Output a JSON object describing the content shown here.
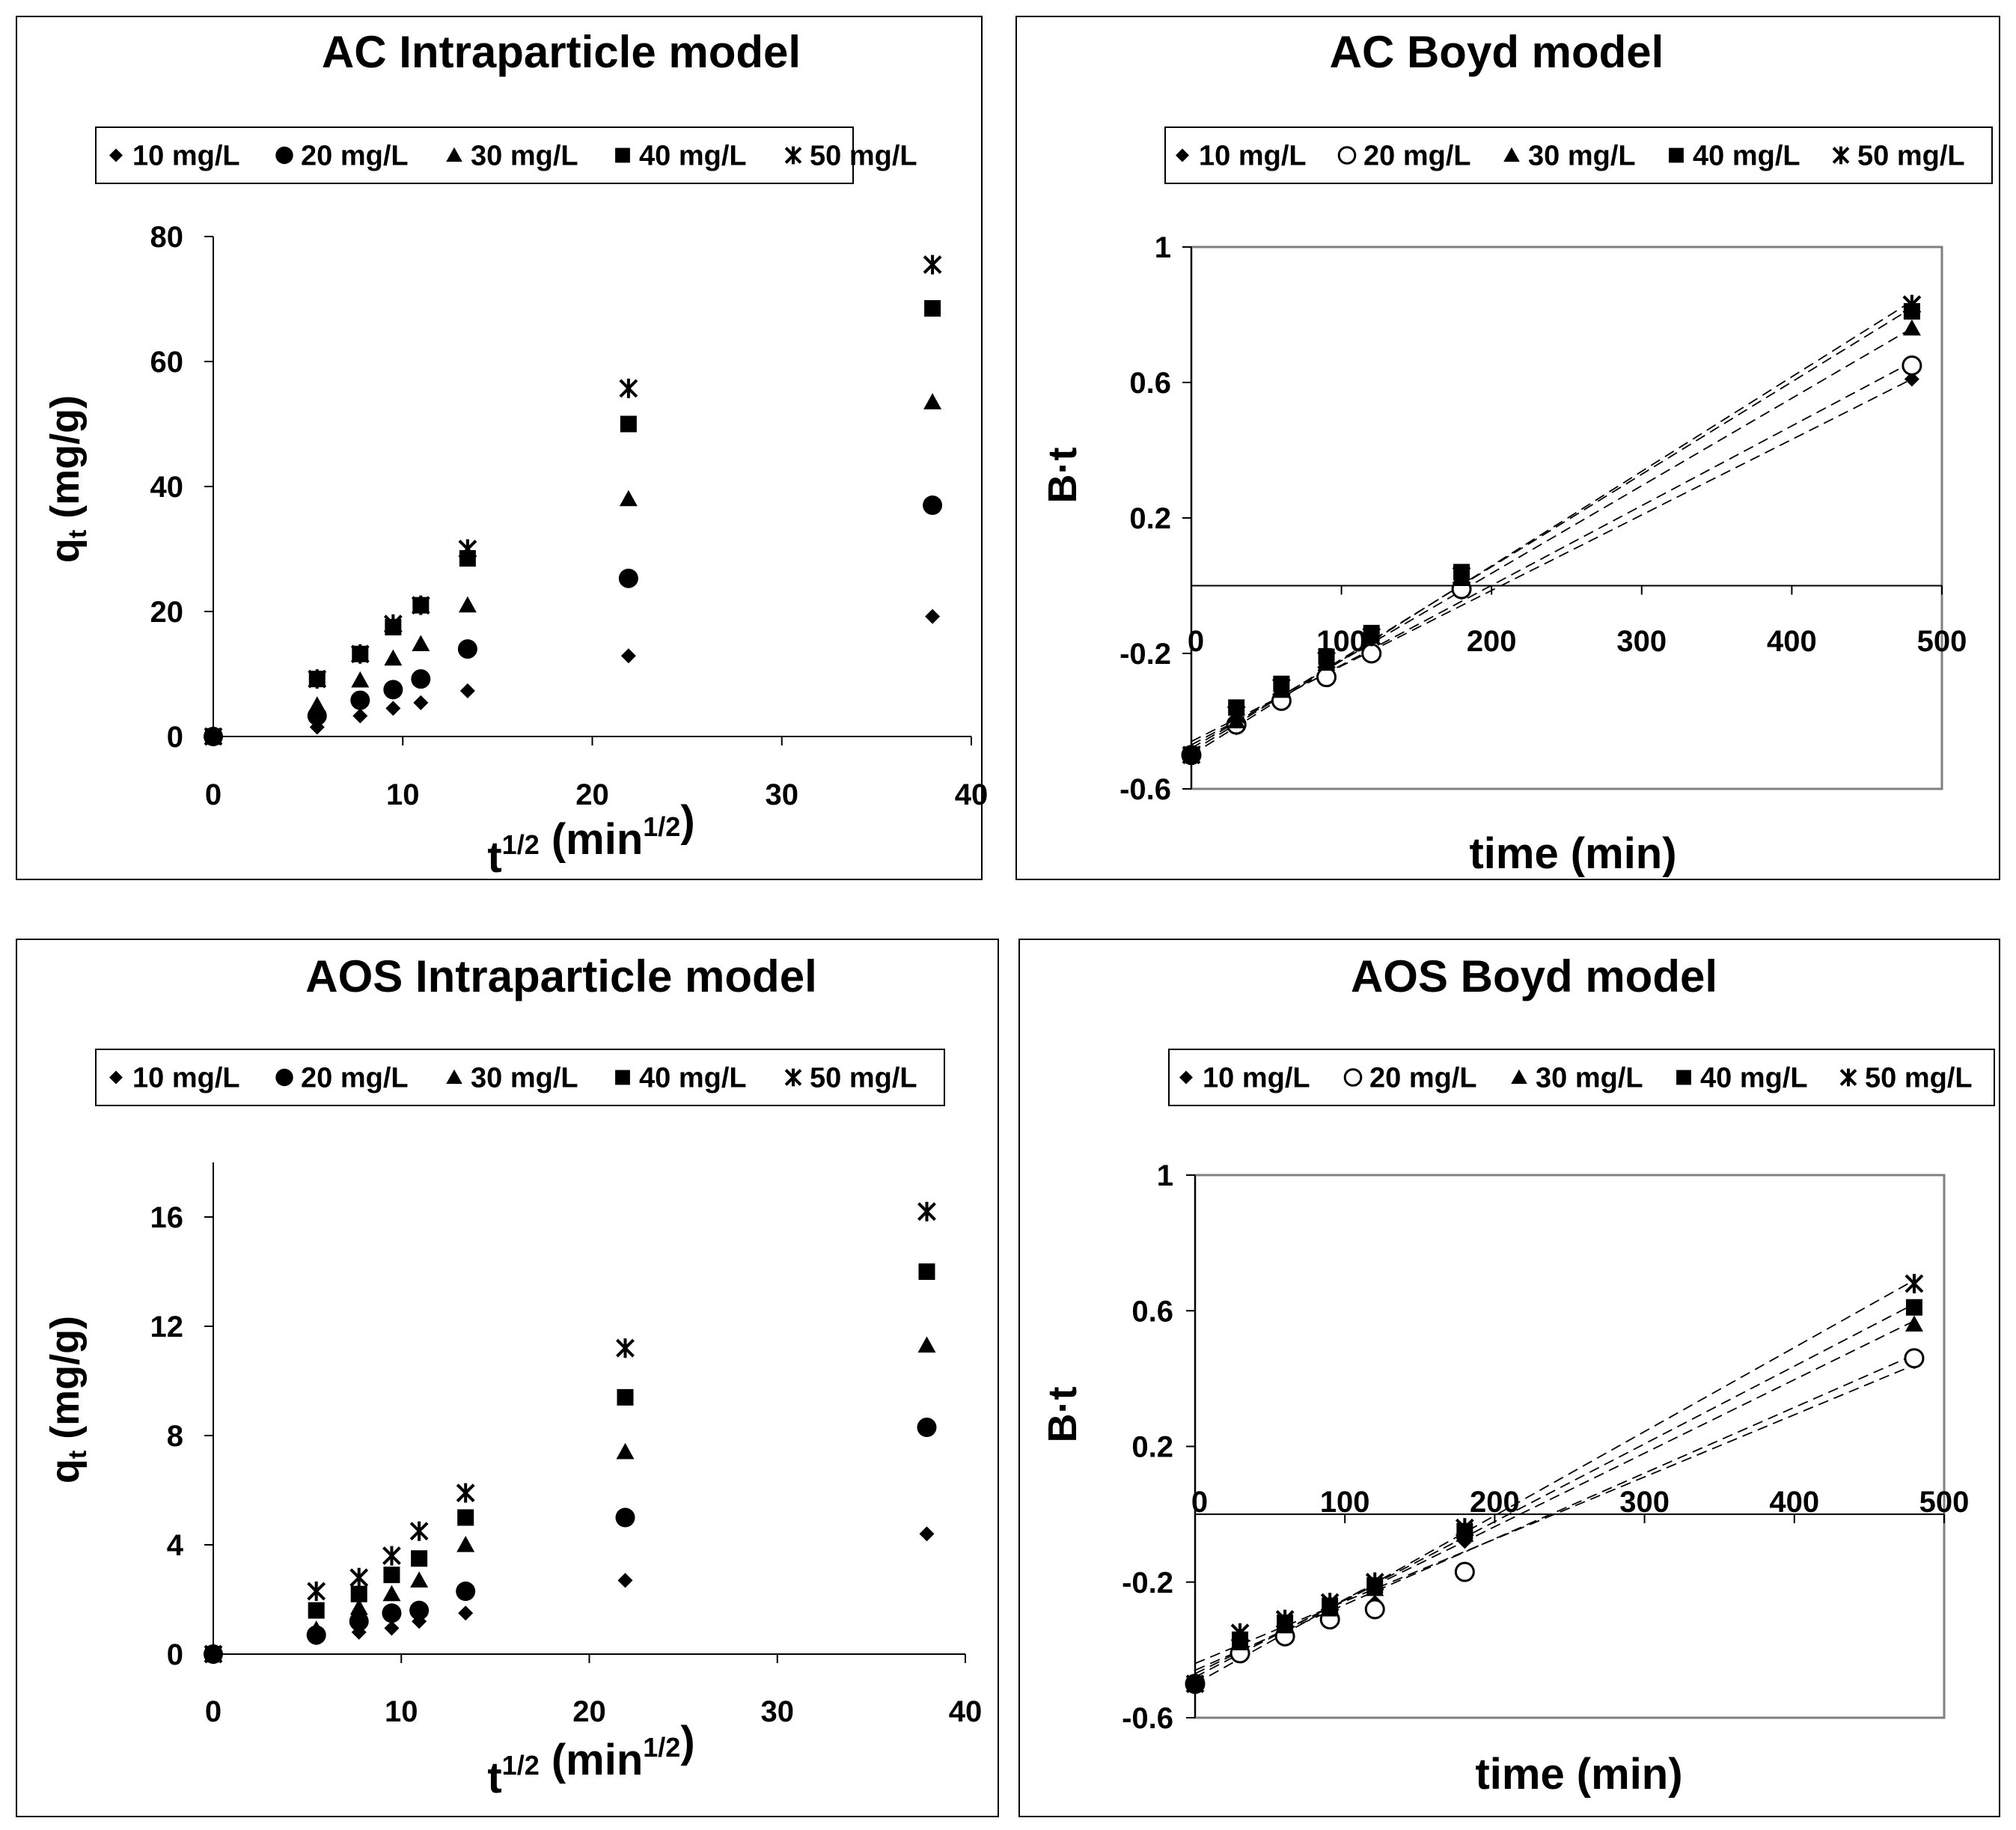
{
  "chart_data": [
    {
      "type": "scatter",
      "title": "AC  Intraparticle model",
      "xlabel": "t",
      "xlabel_sup": "1/2",
      "xlabel_unit": "(min",
      "xlabel_unit_sup": "1/2",
      "xlabel_close": ")",
      "ylabel_main": "q",
      "ylabel_sub": "t",
      "ylabel_unit": " (mg/g)",
      "xlim": [
        0,
        40
      ],
      "ylim": [
        0,
        80
      ],
      "xticks": [
        0,
        10,
        20,
        30,
        40
      ],
      "yticks": [
        0,
        20,
        40,
        60,
        80
      ],
      "xtick_labels": [
        "0",
        "10",
        "20",
        "30",
        "40"
      ],
      "ytick_labels": [
        "0",
        "20",
        "40",
        "60",
        "80"
      ],
      "x": [
        0,
        5.48,
        7.75,
        9.49,
        10.95,
        13.42,
        21.91,
        37.95
      ],
      "series": [
        {
          "name": "10 mg/L",
          "marker": "diamond",
          "values": [
            0,
            1.5,
            3.3,
            4.5,
            5.4,
            7.3,
            12.9,
            19.2
          ]
        },
        {
          "name": "20 mg/L",
          "marker": "circle",
          "values": [
            0,
            3.3,
            5.8,
            7.5,
            9.2,
            14,
            25.3,
            37
          ]
        },
        {
          "name": "30 mg/L",
          "marker": "triangle",
          "values": [
            0,
            5,
            9,
            12.5,
            14.8,
            21,
            38,
            53.5
          ]
        },
        {
          "name": "40 mg/L",
          "marker": "square",
          "values": [
            0,
            9.2,
            13.2,
            17.5,
            21,
            28.5,
            50,
            68.5
          ]
        },
        {
          "name": "50 mg/L",
          "marker": "star",
          "values": [
            0,
            9.2,
            13.2,
            18,
            21,
            30,
            55.7,
            75.5
          ]
        }
      ]
    },
    {
      "type": "scatter",
      "title": "AC Boyd model",
      "xlabel": "time (min)",
      "ylabel": "B·t",
      "xlim": [
        0,
        500
      ],
      "ylim": [
        -0.6,
        1
      ],
      "xticks": [
        0,
        100,
        200,
        300,
        400,
        500
      ],
      "yticks": [
        -0.6,
        -0.2,
        0.2,
        0.6,
        1
      ],
      "xtick_labels": [
        "0",
        "100",
        "200",
        "300",
        "400",
        "500"
      ],
      "ytick_labels": [
        "-0.6",
        "-0.2",
        "0.2",
        "0.6",
        "1"
      ],
      "x": [
        0,
        30,
        60,
        90,
        120,
        180,
        480
      ],
      "series": [
        {
          "name": "10 mg/L",
          "marker": "diamond",
          "values": [
            -0.5,
            -0.42,
            -0.34,
            -0.27,
            -0.2,
            -0.02,
            0.61
          ],
          "trend": [
            -0.46,
            0.61
          ]
        },
        {
          "name": "20 mg/L",
          "marker": "circle-open",
          "values": [
            -0.5,
            -0.41,
            -0.34,
            -0.27,
            -0.2,
            -0.01,
            0.65
          ],
          "trend": [
            -0.47,
            0.66
          ]
        },
        {
          "name": "30 mg/L",
          "marker": "triangle",
          "values": [
            -0.5,
            -0.4,
            -0.31,
            -0.23,
            -0.15,
            0.02,
            0.76
          ],
          "trend": [
            -0.48,
            0.76
          ]
        },
        {
          "name": "40 mg/L",
          "marker": "square",
          "values": [
            -0.5,
            -0.36,
            -0.29,
            -0.21,
            -0.14,
            0.04,
            0.81
          ],
          "trend": [
            -0.49,
            0.82
          ]
        },
        {
          "name": "50 mg/L",
          "marker": "star",
          "values": [
            -0.5,
            -0.38,
            -0.3,
            -0.22,
            -0.15,
            0.03,
            0.83
          ],
          "trend": [
            -0.5,
            0.84
          ]
        }
      ]
    },
    {
      "type": "scatter",
      "title": "AOS  Intraparticle model",
      "xlabel": "t",
      "xlabel_sup": "1/2",
      "xlabel_unit": "(min",
      "xlabel_unit_sup": "1/2",
      "xlabel_close": ")",
      "ylabel_main": "q",
      "ylabel_sub": "t",
      "ylabel_unit": " (mg/g)",
      "xlim": [
        0,
        40
      ],
      "ylim": [
        0,
        18
      ],
      "xticks": [
        0,
        10,
        20,
        30,
        40
      ],
      "yticks": [
        0,
        4,
        8,
        12,
        16
      ],
      "xtick_labels": [
        "0",
        "10",
        "20",
        "30",
        "40"
      ],
      "ytick_labels": [
        "0",
        "4",
        "8",
        "12",
        "16"
      ],
      "x": [
        0,
        5.48,
        7.75,
        9.49,
        10.95,
        13.42,
        21.91,
        37.95
      ],
      "series": [
        {
          "name": "10 mg/L",
          "marker": "diamond",
          "values": [
            0,
            0.6,
            0.8,
            0.95,
            1.2,
            1.5,
            2.7,
            4.4
          ]
        },
        {
          "name": "20 mg/L",
          "marker": "circle",
          "values": [
            0,
            0.7,
            1.2,
            1.5,
            1.6,
            2.3,
            5,
            8.3
          ]
        },
        {
          "name": "30 mg/L",
          "marker": "triangle",
          "values": [
            0,
            0.9,
            1.7,
            2.2,
            2.7,
            4,
            7.4,
            11.3
          ]
        },
        {
          "name": "40 mg/L",
          "marker": "square",
          "values": [
            0,
            1.6,
            2.2,
            2.9,
            3.5,
            5,
            9.4,
            14
          ]
        },
        {
          "name": "50 mg/L",
          "marker": "star",
          "values": [
            0,
            2.3,
            2.8,
            3.6,
            4.5,
            5.9,
            11.2,
            16.2
          ]
        }
      ]
    },
    {
      "type": "scatter",
      "title": "AOS  Boyd model",
      "xlabel": "time (min)",
      "ylabel": "B·t",
      "xlim": [
        0,
        500
      ],
      "ylim": [
        -0.6,
        1
      ],
      "xticks": [
        0,
        100,
        200,
        300,
        400,
        500
      ],
      "yticks": [
        -0.6,
        -0.2,
        0.2,
        0.6,
        1
      ],
      "xtick_labels": [
        "0",
        "100",
        "200",
        "300",
        "400",
        "500"
      ],
      "ytick_labels": [
        "-0.6",
        "-0.2",
        "0.2",
        "0.6",
        "1"
      ],
      "x": [
        0,
        30,
        60,
        90,
        120,
        180,
        480
      ],
      "series": [
        {
          "name": "10 mg/L",
          "marker": "diamond",
          "values": [
            -0.5,
            -0.4,
            -0.35,
            -0.3,
            -0.26,
            -0.08,
            0.45
          ],
          "trend": [
            -0.44,
            0.44
          ]
        },
        {
          "name": "20 mg/L",
          "marker": "circle-open",
          "values": [
            -0.5,
            -0.41,
            -0.36,
            -0.31,
            -0.28,
            -0.17,
            0.46
          ],
          "trend": [
            -0.46,
            0.47
          ]
        },
        {
          "name": "30 mg/L",
          "marker": "triangle",
          "values": [
            -0.5,
            -0.38,
            -0.33,
            -0.28,
            -0.22,
            -0.06,
            0.56
          ],
          "trend": [
            -0.47,
            0.57
          ]
        },
        {
          "name": "40 mg/L",
          "marker": "square",
          "values": [
            -0.5,
            -0.37,
            -0.32,
            -0.27,
            -0.21,
            -0.05,
            0.61
          ],
          "trend": [
            -0.48,
            0.62
          ]
        },
        {
          "name": "50 mg/L",
          "marker": "star",
          "values": [
            -0.5,
            -0.35,
            -0.31,
            -0.26,
            -0.2,
            -0.04,
            0.68
          ],
          "trend": [
            -0.5,
            0.69
          ]
        }
      ]
    }
  ]
}
